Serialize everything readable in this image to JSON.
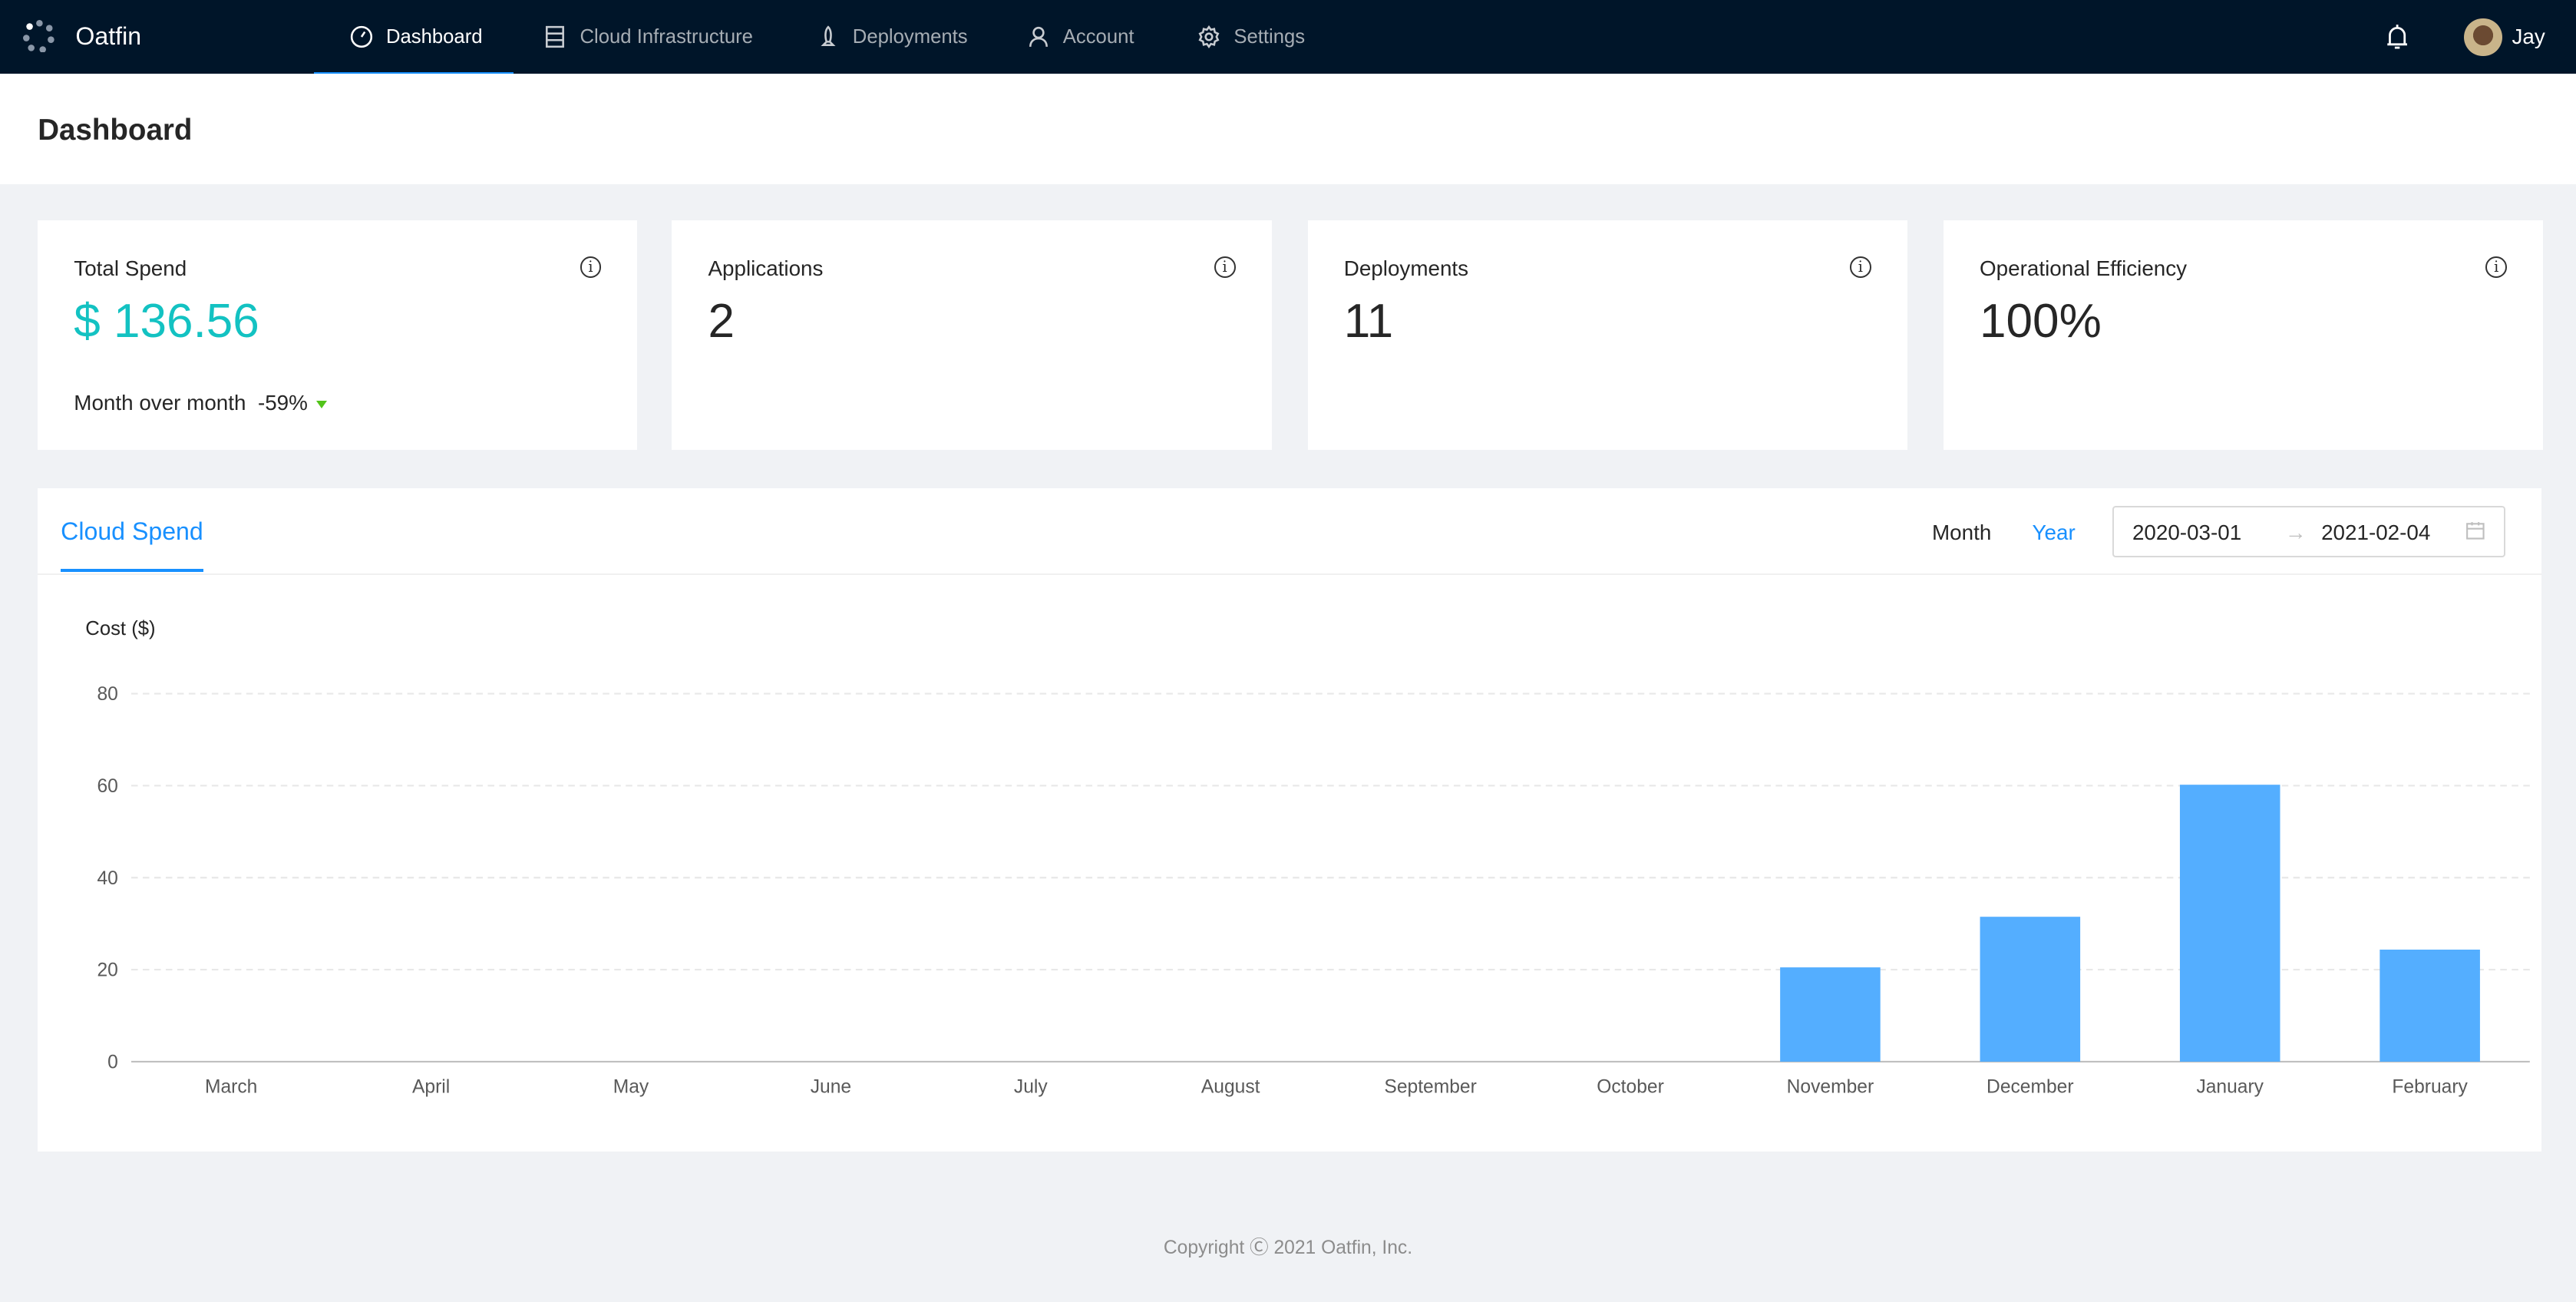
{
  "nav": {
    "brand": "Oatfin",
    "items": [
      {
        "label": "Dashboard",
        "icon": "dashboard-icon",
        "active": true
      },
      {
        "label": "Cloud Infrastructure",
        "icon": "server-icon"
      },
      {
        "label": "Deployments",
        "icon": "rocket-icon"
      },
      {
        "label": "Account",
        "icon": "user-icon"
      },
      {
        "label": "Settings",
        "icon": "gear-icon"
      }
    ],
    "user": "Jay"
  },
  "header": {
    "title": "Dashboard"
  },
  "cards": [
    {
      "title": "Total Spend",
      "value": "$ 136.56",
      "mom_label": "Month over month",
      "mom_value": "-59%"
    },
    {
      "title": "Applications",
      "value": "2"
    },
    {
      "title": "Deployments",
      "value": "11"
    },
    {
      "title": "Operational Efficiency",
      "value": "100%"
    }
  ],
  "panel": {
    "tab": "Cloud Spend",
    "modes": [
      "Month",
      "Year"
    ],
    "active_mode": "Year",
    "start_date": "2020-03-01",
    "end_date": "2021-02-04"
  },
  "colors": {
    "accent": "#1890ff",
    "bar": "#54aeff",
    "spend": "#13c2c2",
    "nav": "#001529"
  },
  "chart_data": {
    "type": "bar",
    "ylabel": "Cost ($)",
    "categories": [
      "March",
      "April",
      "May",
      "June",
      "July",
      "August",
      "September",
      "October",
      "November",
      "December",
      "January",
      "February"
    ],
    "values": [
      0,
      0,
      0,
      0,
      0,
      0,
      0,
      0,
      20.5,
      31.5,
      60.2,
      24.36
    ],
    "ylim": [
      0,
      80
    ],
    "yticks": [
      0,
      20,
      40,
      60,
      80
    ],
    "grid": true
  },
  "footer": "Copyright Ⓒ 2021 Oatfin, Inc."
}
